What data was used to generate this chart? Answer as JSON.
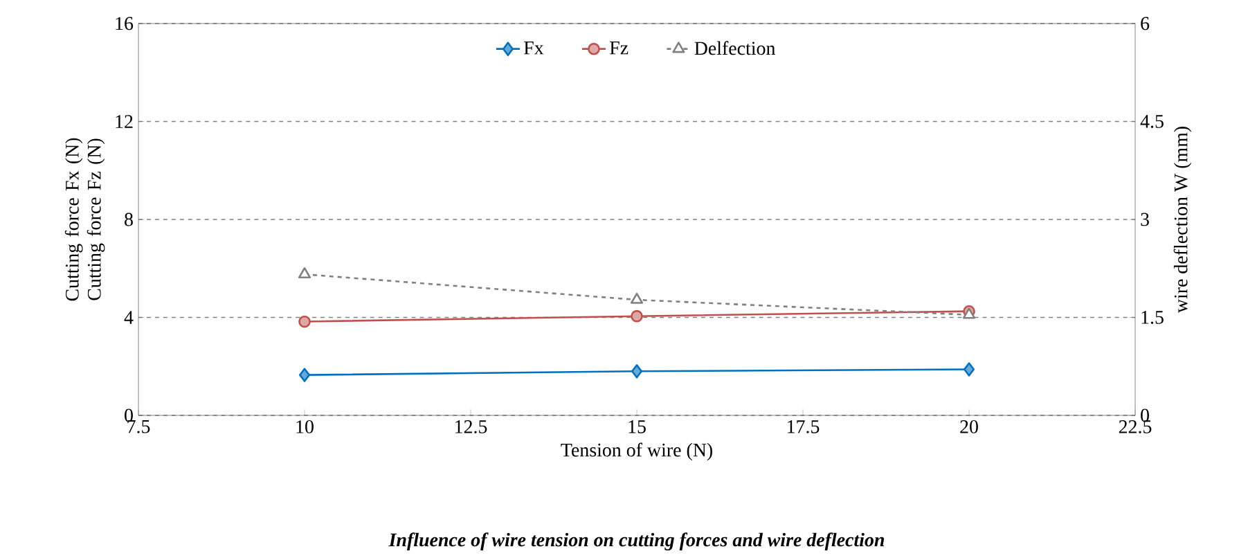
{
  "chart_data": {
    "type": "line",
    "title": "Influence of wire tension on cutting forces and wire deflection",
    "xlabel": "Tension of wire (N)",
    "ylabel": "Cutting force Fx (N) Cutting force Fz (N)",
    "y2label": "wire deflection  W (mm)",
    "x": [
      10,
      15,
      20
    ],
    "series": [
      {
        "name": "Fx",
        "color": "#0070c0",
        "values": [
          1.65,
          1.8,
          1.88
        ],
        "marker": "diamond",
        "line_style": "solid"
      },
      {
        "name": "Fz",
        "color": "#c0504d",
        "values": [
          3.83,
          4.05,
          4.25
        ],
        "marker": "circle",
        "line_style": "solid"
      },
      {
        "name": "Delfection",
        "color": "#808080",
        "values": [
          2.16,
          1.77,
          1.54
        ],
        "marker": "triangle",
        "line_style": "dashed",
        "axis": "y2"
      }
    ],
    "xlim": [
      7.5,
      22.5
    ],
    "xticks": [
      7.5,
      10,
      12.5,
      15,
      17.5,
      20,
      22.5
    ],
    "ylim": [
      0,
      16
    ],
    "yticks": [
      0,
      4,
      8,
      12,
      16
    ],
    "y2lim": [
      0,
      6
    ],
    "y2ticks": [
      0,
      1.5,
      3,
      4.5,
      6
    ],
    "grid": "y",
    "legend": "top"
  }
}
